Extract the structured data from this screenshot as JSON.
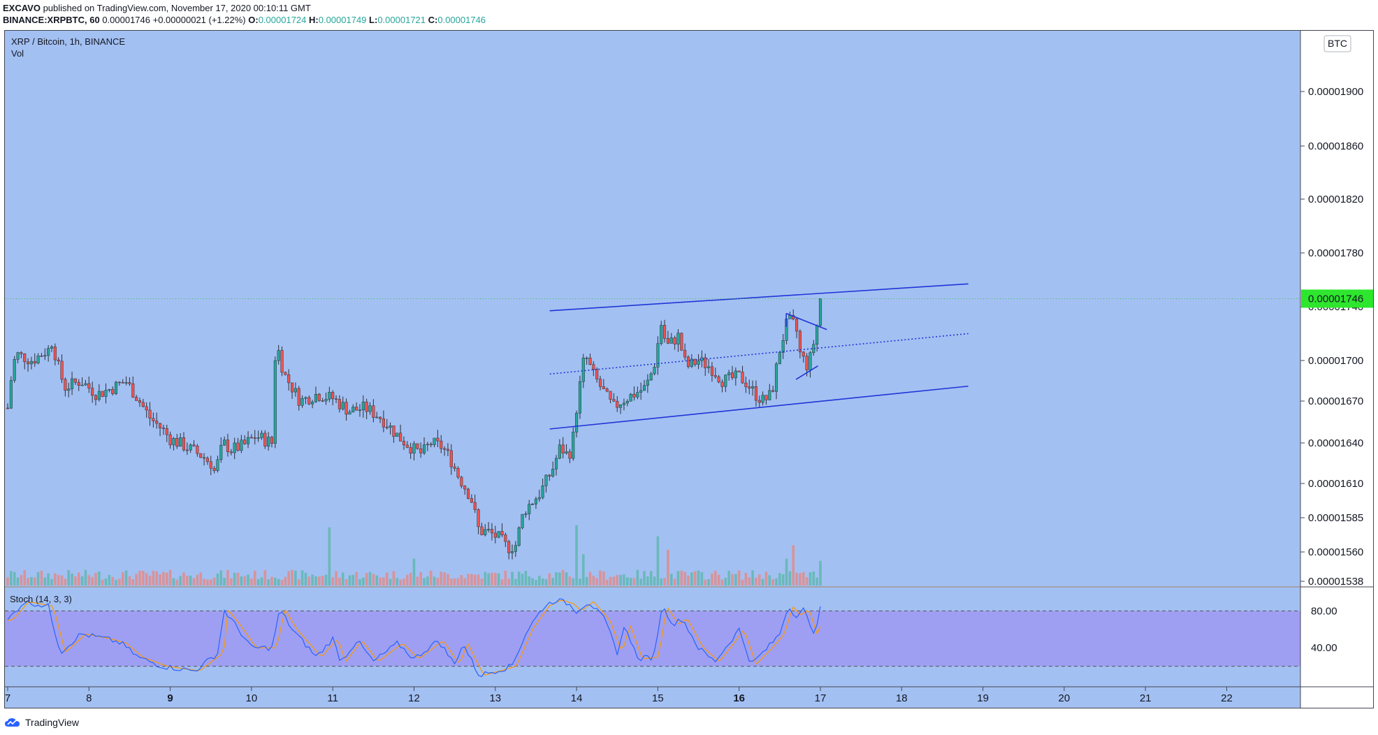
{
  "header": {
    "publisher": "EXCAVO",
    "published_text": "published on TradingView.com, November 17, 2020 00:10:11 GMT",
    "symbol": "BINANCE:XRPBTC, 60",
    "last": "0.00001746",
    "change": "+0.00000021 (+1.22%)",
    "o_label": "O:",
    "o_value": "0.00001724",
    "h_label": "H:",
    "h_value": "0.00001749",
    "l_label": "L:",
    "l_value": "0.00001721",
    "c_label": "C:",
    "c_value": "0.00001746"
  },
  "chart": {
    "title": "XRP / Bitcoin, 1h, BINANCE",
    "vol_label": "Vol",
    "currency_badge": "BTC",
    "stoch_label": "Stoch (14, 3, 3)",
    "footer_brand": "TradingView"
  },
  "chart_data": {
    "type": "candlestick",
    "y_axis": {
      "ticks": [
        "0.00001900",
        "0.00001860",
        "0.00001820",
        "0.00001780",
        "0.00001740",
        "0.00001700",
        "0.00001670",
        "0.00001640",
        "0.00001610",
        "0.00001585",
        "0.00001560",
        "0.00001538"
      ],
      "last_price": "0.00001746",
      "ylim": [
        1.533e-05,
        1.93e-05
      ]
    },
    "x_axis": {
      "ticks": [
        "7",
        "8",
        "9",
        "10",
        "11",
        "12",
        "13",
        "14",
        "15",
        "16",
        "17",
        "18",
        "19",
        "20",
        "21",
        "22"
      ],
      "bold_ticks": [
        "9",
        "16"
      ],
      "unit": "day of November 2020"
    },
    "price_path": [
      [
        7.0,
        1.665e-05
      ],
      [
        7.05,
        1.69e-05
      ],
      [
        7.1,
        1.705e-05
      ],
      [
        7.3,
        1.7e-05
      ],
      [
        7.5,
        1.708e-05
      ],
      [
        7.55,
        1.715e-05
      ],
      [
        7.6,
        1.7e-05
      ],
      [
        7.7,
        1.68e-05
      ],
      [
        7.9,
        1.685e-05
      ],
      [
        8.1,
        1.675e-05
      ],
      [
        8.3,
        1.68e-05
      ],
      [
        8.45,
        1.685e-05
      ],
      [
        8.6,
        1.672e-05
      ],
      [
        8.75,
        1.658e-05
      ],
      [
        8.9,
        1.65e-05
      ],
      [
        9.0,
        1.643e-05
      ],
      [
        9.2,
        1.637e-05
      ],
      [
        9.4,
        1.63e-05
      ],
      [
        9.5,
        1.625e-05
      ],
      [
        9.55,
        1.618e-05
      ],
      [
        9.65,
        1.64e-05
      ],
      [
        9.75,
        1.635e-05
      ],
      [
        9.9,
        1.638e-05
      ],
      [
        10.05,
        1.645e-05
      ],
      [
        10.25,
        1.64e-05
      ],
      [
        10.3,
        1.715e-05
      ],
      [
        10.4,
        1.69e-05
      ],
      [
        10.6,
        1.67e-05
      ],
      [
        10.8,
        1.675e-05
      ],
      [
        11.0,
        1.672e-05
      ],
      [
        11.2,
        1.663e-05
      ],
      [
        11.4,
        1.665e-05
      ],
      [
        11.6,
        1.658e-05
      ],
      [
        11.8,
        1.645e-05
      ],
      [
        12.0,
        1.635e-05
      ],
      [
        12.1,
        1.632e-05
      ],
      [
        12.2,
        1.64e-05
      ],
      [
        12.35,
        1.637e-05
      ],
      [
        12.45,
        1.628e-05
      ],
      [
        12.55,
        1.615e-05
      ],
      [
        12.7,
        1.6e-05
      ],
      [
        12.8,
        1.575e-05
      ],
      [
        12.9,
        1.575e-05
      ],
      [
        13.05,
        1.57e-05
      ],
      [
        13.15,
        1.563e-05
      ],
      [
        13.25,
        1.565e-05
      ],
      [
        13.35,
        1.59e-05
      ],
      [
        13.55,
        1.603e-05
      ],
      [
        13.7,
        1.62e-05
      ],
      [
        13.8,
        1.637e-05
      ],
      [
        13.9,
        1.63e-05
      ],
      [
        13.95,
        1.64e-05
      ],
      [
        14.0,
        1.665e-05
      ],
      [
        14.1,
        1.705e-05
      ],
      [
        14.2,
        1.69e-05
      ],
      [
        14.35,
        1.675e-05
      ],
      [
        14.45,
        1.665e-05
      ],
      [
        14.55,
        1.67e-05
      ],
      [
        14.7,
        1.675e-05
      ],
      [
        14.85,
        1.68e-05
      ],
      [
        14.95,
        1.695e-05
      ],
      [
        15.05,
        1.73e-05
      ],
      [
        15.1,
        1.71e-05
      ],
      [
        15.25,
        1.718e-05
      ],
      [
        15.35,
        1.695e-05
      ],
      [
        15.5,
        1.7e-05
      ],
      [
        15.65,
        1.695e-05
      ],
      [
        15.8,
        1.685e-05
      ],
      [
        16.0,
        1.688e-05
      ],
      [
        16.1,
        1.683e-05
      ],
      [
        16.2,
        1.675e-05
      ],
      [
        16.3,
        1.67e-05
      ],
      [
        16.4,
        1.675e-05
      ],
      [
        16.5,
        1.708e-05
      ],
      [
        16.6,
        1.73e-05
      ],
      [
        16.7,
        1.725e-05
      ],
      [
        16.75,
        1.705e-05
      ],
      [
        16.85,
        1.695e-05
      ],
      [
        16.95,
        1.722e-05
      ],
      [
        17.0,
        1.746e-05
      ]
    ],
    "stoch": {
      "levels": [
        "80.00",
        "40.00"
      ],
      "k_path": [
        [
          7.0,
          70
        ],
        [
          7.2,
          90
        ],
        [
          7.5,
          85
        ],
        [
          7.65,
          35
        ],
        [
          7.9,
          55
        ],
        [
          8.2,
          50
        ],
        [
          8.4,
          45
        ],
        [
          8.6,
          30
        ],
        [
          8.9,
          20
        ],
        [
          9.3,
          15
        ],
        [
          9.6,
          35
        ],
        [
          9.65,
          82
        ],
        [
          9.8,
          65
        ],
        [
          10.0,
          40
        ],
        [
          10.25,
          40
        ],
        [
          10.35,
          82
        ],
        [
          10.5,
          60
        ],
        [
          10.8,
          30
        ],
        [
          11.0,
          50
        ],
        [
          11.1,
          25
        ],
        [
          11.3,
          48
        ],
        [
          11.5,
          25
        ],
        [
          11.8,
          45
        ],
        [
          12.0,
          28
        ],
        [
          12.3,
          48
        ],
        [
          12.5,
          22
        ],
        [
          12.6,
          45
        ],
        [
          12.8,
          10
        ],
        [
          13.0,
          15
        ],
        [
          13.2,
          20
        ],
        [
          13.4,
          60
        ],
        [
          13.6,
          85
        ],
        [
          13.75,
          92
        ],
        [
          13.9,
          88
        ],
        [
          14.0,
          80
        ],
        [
          14.15,
          90
        ],
        [
          14.35,
          70
        ],
        [
          14.5,
          35
        ],
        [
          14.6,
          65
        ],
        [
          14.75,
          28
        ],
        [
          14.95,
          30
        ],
        [
          15.05,
          85
        ],
        [
          15.2,
          65
        ],
        [
          15.3,
          72
        ],
        [
          15.5,
          40
        ],
        [
          15.7,
          25
        ],
        [
          15.85,
          42
        ],
        [
          16.0,
          60
        ],
        [
          16.15,
          22
        ],
        [
          16.35,
          40
        ],
        [
          16.5,
          55
        ],
        [
          16.6,
          85
        ],
        [
          16.7,
          75
        ],
        [
          16.8,
          82
        ],
        [
          16.9,
          55
        ],
        [
          16.95,
          65
        ],
        [
          17.0,
          82
        ]
      ]
    },
    "trendlines": {
      "channel_upper": [
        [
          13.67,
          1.737e-05
        ],
        [
          18.82,
          1.757e-05
        ]
      ],
      "channel_lower": [
        [
          13.67,
          1.65e-05
        ],
        [
          18.82,
          1.681e-05
        ]
      ],
      "channel_mid": [
        [
          13.67,
          1.69e-05
        ],
        [
          18.82,
          1.72e-05
        ]
      ],
      "pennant_upper": [
        [
          16.58,
          1.735e-05
        ],
        [
          17.08,
          1.723e-05
        ]
      ],
      "pennant_lower": [
        [
          16.7,
          1.686e-05
        ],
        [
          16.97,
          1.696e-05
        ]
      ]
    },
    "colors": {
      "background": "#a3c0f2",
      "up": "#26a69a",
      "down": "#ef5350",
      "trendline": "#1f35d8",
      "stoch_k": "#2962ff",
      "stoch_d": "#ff9800",
      "stoch_band": "#9d9bf2",
      "price_badge": "#2ee62e"
    }
  }
}
